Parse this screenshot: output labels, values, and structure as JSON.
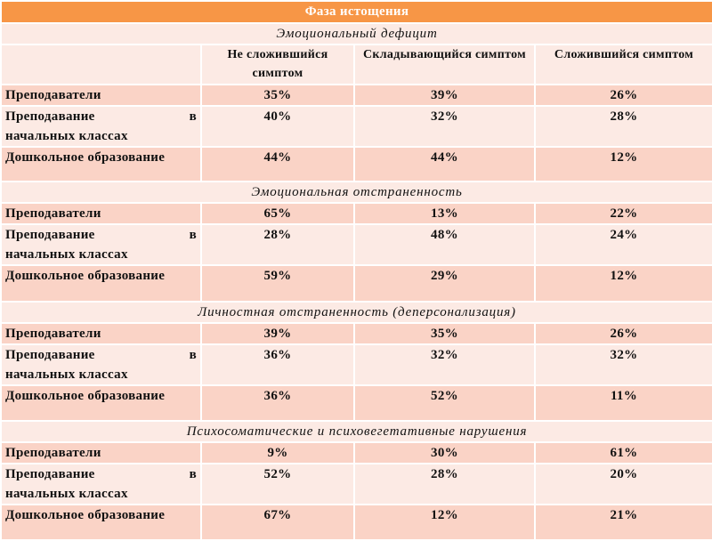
{
  "title": "Фаза истощения",
  "columns": [
    "Не сложившийся симптом",
    "Складывающийся симптом",
    "Сложившийся симптом"
  ],
  "sections": [
    {
      "name": "Эмоциональный дефицит",
      "rows": [
        {
          "label": "Преподаватели",
          "values": [
            "35%",
            "39%",
            "26%"
          ]
        },
        {
          "label_a": "Преподавание",
          "label_b": "в",
          "label_c": "начальных классах",
          "values": [
            "40%",
            "32%",
            "28%"
          ]
        },
        {
          "label": "Дошкольное образование",
          "values": [
            "44%",
            "44%",
            "12%"
          ]
        }
      ]
    },
    {
      "name": "Эмоциональная отстраненность",
      "rows": [
        {
          "label": "Преподаватели",
          "values": [
            "65%",
            "13%",
            "22%"
          ]
        },
        {
          "label_a": "Преподавание",
          "label_b": "в",
          "label_c": "начальных классах",
          "values": [
            "28%",
            "48%",
            "24%"
          ]
        },
        {
          "label": "Дошкольное образование",
          "values": [
            "59%",
            "29%",
            "12%"
          ]
        }
      ]
    },
    {
      "name": "Личностная отстраненность (деперсонализация)",
      "rows": [
        {
          "label": "Преподаватели",
          "values": [
            "39%",
            "35%",
            "26%"
          ]
        },
        {
          "label_a": "Преподавание",
          "label_b": "в",
          "label_c": "начальных классах",
          "values": [
            "36%",
            "32%",
            "32%"
          ]
        },
        {
          "label": "Дошкольное образование",
          "values": [
            "36%",
            "52%",
            "11%"
          ]
        }
      ]
    },
    {
      "name": "Психосоматические и психовегетативные нарушения",
      "rows": [
        {
          "label": "Преподаватели",
          "values": [
            "9%",
            "30%",
            "61%"
          ]
        },
        {
          "label_a": "Преподавание",
          "label_b": "в",
          "label_c": "начальных классах",
          "values": [
            "52%",
            "28%",
            "20%"
          ]
        },
        {
          "label": "Дошкольное образование",
          "values": [
            "67%",
            "12%",
            "21%"
          ]
        }
      ]
    }
  ]
}
